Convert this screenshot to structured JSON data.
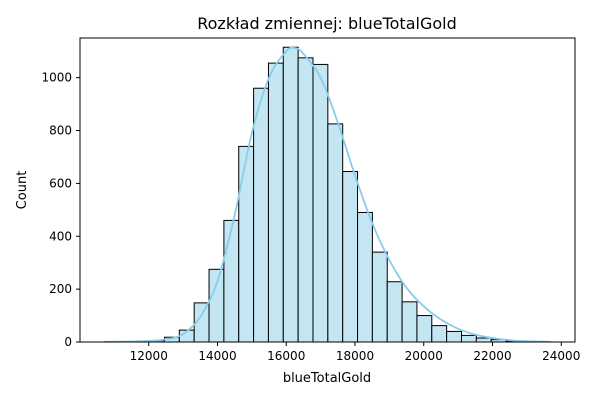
{
  "chart_data": {
    "type": "bar",
    "title": "Rozkład zmiennej: blueTotalGold",
    "xlabel": "blueTotalGold",
    "ylabel": "Count",
    "xlim": [
      10000,
      24400
    ],
    "ylim": [
      0,
      1150
    ],
    "xticks": [
      12000,
      14000,
      16000,
      18000,
      20000,
      22000,
      24000
    ],
    "yticks": [
      0,
      200,
      400,
      600,
      800,
      1000
    ],
    "bin_start": 10730,
    "bin_width": 432,
    "bar_color": "#c3e6f2",
    "bar_edge_color": "#000000",
    "kde_color": "#87ceeb",
    "values": [
      1,
      1,
      2,
      5,
      18,
      45,
      148,
      275,
      460,
      740,
      960,
      1055,
      1115,
      1075,
      1050,
      825,
      645,
      490,
      340,
      228,
      152,
      100,
      62,
      40,
      25,
      15,
      9,
      4,
      2,
      1
    ],
    "kde": [
      [
        10700,
        1
      ],
      [
        11500,
        2
      ],
      [
        12000,
        4
      ],
      [
        12500,
        10
      ],
      [
        13000,
        30
      ],
      [
        13500,
        95
      ],
      [
        14000,
        230
      ],
      [
        14500,
        480
      ],
      [
        15000,
        790
      ],
      [
        15500,
        1000
      ],
      [
        16000,
        1100
      ],
      [
        16250,
        1112
      ],
      [
        16500,
        1090
      ],
      [
        17000,
        1000
      ],
      [
        17500,
        830
      ],
      [
        18000,
        630
      ],
      [
        18500,
        450
      ],
      [
        19000,
        310
      ],
      [
        19500,
        205
      ],
      [
        20000,
        135
      ],
      [
        20500,
        85
      ],
      [
        21000,
        50
      ],
      [
        21500,
        28
      ],
      [
        22000,
        15
      ],
      [
        22500,
        7
      ],
      [
        23000,
        3
      ],
      [
        23700,
        1
      ]
    ]
  }
}
